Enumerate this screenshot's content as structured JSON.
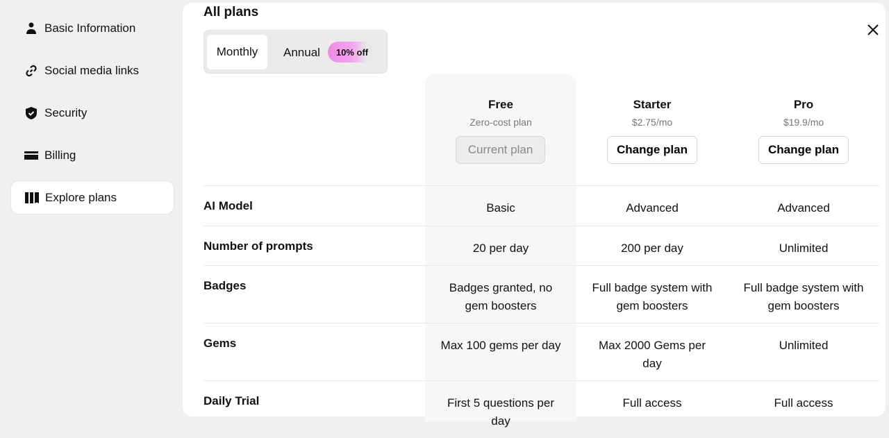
{
  "sidebar": {
    "items": [
      {
        "label": "Basic Information",
        "icon": "person-icon"
      },
      {
        "label": "Social media links",
        "icon": "link-icon"
      },
      {
        "label": "Security",
        "icon": "shield-check-icon"
      },
      {
        "label": "Billing",
        "icon": "card-icon"
      },
      {
        "label": "Explore plans",
        "icon": "columns-icon",
        "active": true
      }
    ]
  },
  "main": {
    "title": "All plans",
    "toggle": {
      "monthly": "Monthly",
      "annual": "Annual",
      "discount": "10% off",
      "selected": "Monthly"
    },
    "plans": [
      {
        "name": "Free",
        "sub": "Zero-cost plan",
        "button": "Current plan"
      },
      {
        "name": "Starter",
        "sub": "$2.75/mo",
        "button": "Change plan"
      },
      {
        "name": "Pro",
        "sub": "$19.9/mo",
        "button": "Change plan"
      }
    ],
    "rows": [
      {
        "label": "AI Model",
        "values": [
          "Basic",
          "Advanced",
          "Advanced"
        ]
      },
      {
        "label": "Number of prompts",
        "values": [
          "20 per day",
          "200 per day",
          "Unlimited"
        ]
      },
      {
        "label": "Badges",
        "values": [
          "Badges granted, no gem boosters",
          "Full badge system with gem boosters",
          "Full badge system with gem boosters"
        ]
      },
      {
        "label": "Gems",
        "values": [
          "Max 100 gems per day",
          "Max 2000 Gems per day",
          "Unlimited"
        ]
      },
      {
        "label": "Daily Trial",
        "values": [
          "First 5 questions per day",
          "Full access",
          "Full access"
        ]
      }
    ]
  }
}
